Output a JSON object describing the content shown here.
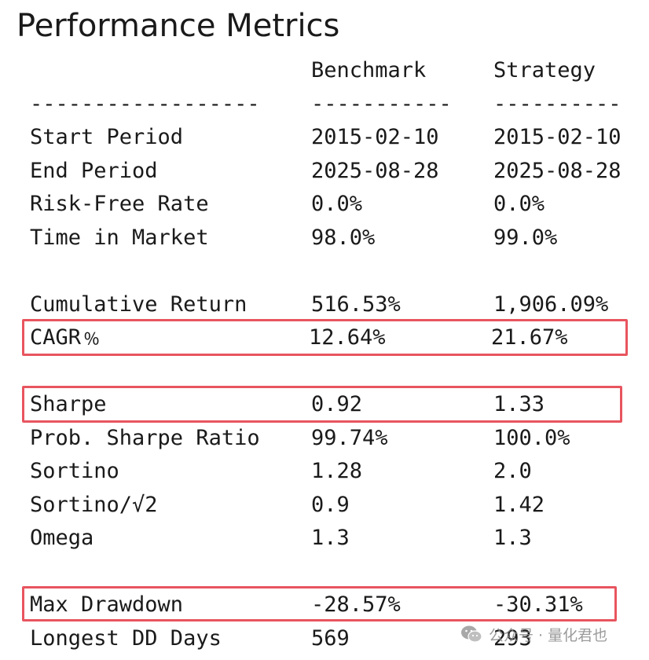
{
  "title": "Performance Metrics",
  "header": {
    "benchmark": "Benchmark",
    "strategy": "Strategy",
    "sep_label": "------------------",
    "sep_bench": "-----------",
    "sep_strat": "----------"
  },
  "rows": [
    {
      "label": "Start Period",
      "benchmark": "2015-02-10",
      "strategy": "2015-02-10"
    },
    {
      "label": "End Period",
      "benchmark": "2025-08-28",
      "strategy": "2025-08-28"
    },
    {
      "label": "Risk-Free Rate",
      "benchmark": "0.0%",
      "strategy": "0.0%"
    },
    {
      "label": "Time in Market",
      "benchmark": "98.0%",
      "strategy": "99.0%"
    },
    {
      "label": "Cumulative Return",
      "benchmark": "516.53%",
      "strategy": "1,906.09%"
    },
    {
      "label": "CAGR﹪",
      "benchmark": "12.64%",
      "strategy": "21.67%"
    },
    {
      "label": "Sharpe",
      "benchmark": "0.92",
      "strategy": "1.33"
    },
    {
      "label": "Prob. Sharpe Ratio",
      "benchmark": "99.74%",
      "strategy": "100.0%"
    },
    {
      "label": "Sortino",
      "benchmark": "1.28",
      "strategy": "2.0"
    },
    {
      "label": "Sortino/√2",
      "benchmark": "0.9",
      "strategy": "1.42"
    },
    {
      "label": "Omega",
      "benchmark": "1.3",
      "strategy": "1.3"
    },
    {
      "label": "Max Drawdown",
      "benchmark": "-28.57%",
      "strategy": "-30.31%"
    },
    {
      "label": "Longest DD Days",
      "benchmark": "569",
      "strategy": "293"
    }
  ],
  "watermark": {
    "text": "公众号 · 量化君也",
    "icon": "wechat-icon"
  },
  "colors": {
    "highlight": "#e8555f",
    "text": "#1a1a1a"
  }
}
